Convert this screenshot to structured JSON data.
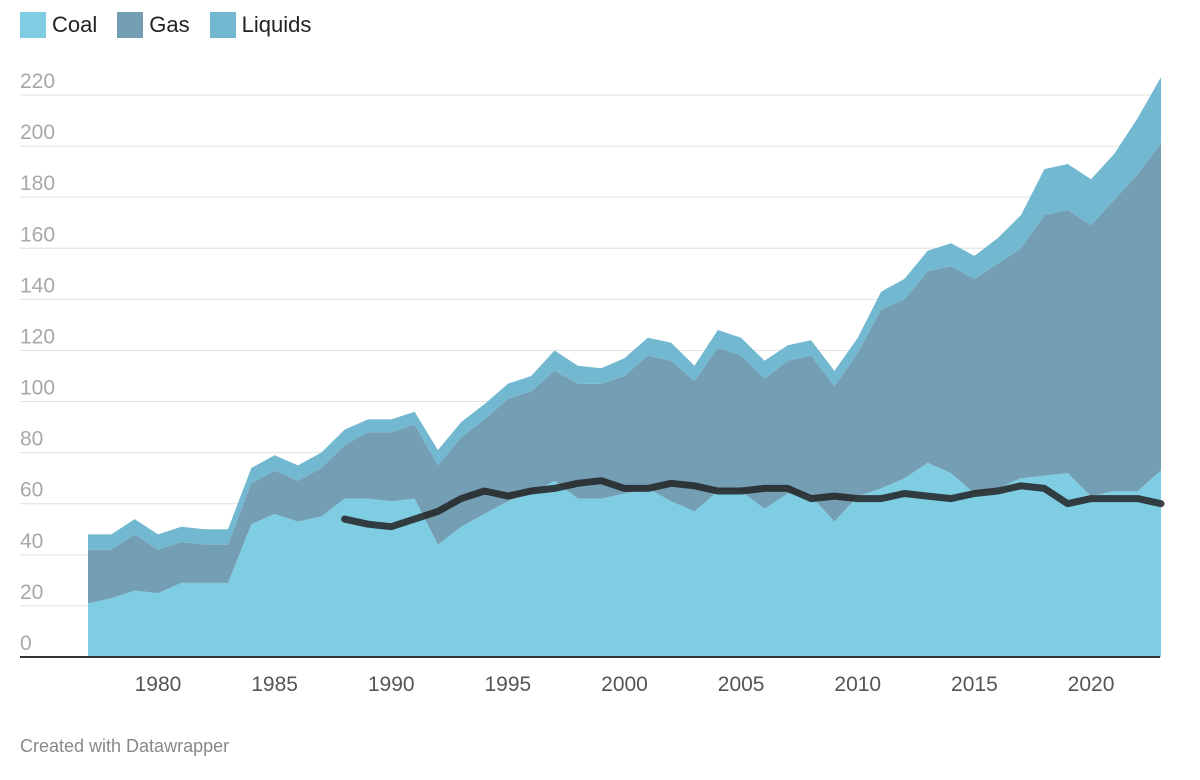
{
  "chart_data": {
    "type": "area",
    "stacked": true,
    "legend_position": "top-left",
    "grid": true,
    "ylim": [
      0,
      220
    ],
    "xlim": [
      1977,
      2023
    ],
    "yticks": [
      "0",
      "20",
      "40",
      "60",
      "80",
      "100",
      "120",
      "140",
      "160",
      "180",
      "200",
      "220"
    ],
    "xticks": [
      "1980",
      "1985",
      "1990",
      "1995",
      "2000",
      "2005",
      "2010",
      "2015",
      "2020"
    ],
    "x": [
      1977,
      1978,
      1979,
      1980,
      1981,
      1982,
      1983,
      1984,
      1985,
      1986,
      1987,
      1988,
      1989,
      1990,
      1991,
      1992,
      1993,
      1994,
      1995,
      1996,
      1997,
      1998,
      1999,
      2000,
      2001,
      2002,
      2003,
      2004,
      2005,
      2006,
      2007,
      2008,
      2009,
      2010,
      2011,
      2012,
      2013,
      2014,
      2015,
      2016,
      2017,
      2018,
      2019,
      2020,
      2021,
      2022,
      2023
    ],
    "series": [
      {
        "name": "Coal",
        "color": "#7fcde3",
        "values": [
          21,
          23,
          26,
          25,
          29,
          29,
          29,
          52,
          56,
          53,
          55,
          62,
          62,
          61,
          62,
          44,
          51,
          56,
          61,
          64,
          69,
          62,
          62,
          64,
          66,
          61,
          57,
          65,
          65,
          58,
          64,
          63,
          53,
          63,
          66,
          70,
          76,
          72,
          64,
          66,
          70,
          71,
          72,
          63,
          65,
          65,
          73
        ]
      },
      {
        "name": "Gas",
        "color": "#739eb4",
        "values": [
          21,
          19,
          22,
          17,
          16,
          15,
          15,
          16,
          17,
          16,
          19,
          21,
          26,
          27,
          29,
          31,
          35,
          37,
          40,
          40,
          43,
          45,
          45,
          46,
          52,
          55,
          51,
          56,
          53,
          51,
          52,
          55,
          53,
          56,
          70,
          70,
          75,
          81,
          84,
          88,
          90,
          102,
          103,
          106,
          114,
          124,
          128
        ]
      },
      {
        "name": "Liquids",
        "color": "#72b8d1",
        "values": [
          6,
          6,
          6,
          6,
          6,
          6,
          6,
          6,
          6,
          6,
          6,
          6,
          5,
          5,
          5,
          6,
          6,
          6,
          6,
          6,
          8,
          7,
          6,
          7,
          7,
          7,
          6,
          7,
          7,
          7,
          6,
          6,
          6,
          6,
          7,
          8,
          8,
          9,
          9,
          10,
          13,
          18,
          18,
          18,
          18,
          22,
          26
        ]
      },
      {
        "name": "",
        "color": "#222222",
        "line": true,
        "x": [
          1988,
          1989,
          1990,
          1991,
          1992,
          1993,
          1994,
          1995,
          1996,
          1997,
          1998,
          1999,
          2000,
          2001,
          2002,
          2003,
          2004,
          2005,
          2006,
          2007,
          2008,
          2009,
          2010,
          2011,
          2012,
          2013,
          2014,
          2015,
          2016,
          2017,
          2018,
          2019,
          2020,
          2021,
          2022,
          2023
        ],
        "values": [
          54,
          52,
          51,
          54,
          57,
          62,
          65,
          63,
          65,
          66,
          68,
          69,
          66,
          66,
          68,
          67,
          65,
          65,
          66,
          66,
          62,
          63,
          62,
          62,
          64,
          63,
          62,
          64,
          65,
          67,
          66,
          60,
          62,
          62,
          62,
          60
        ]
      }
    ]
  },
  "footer": "Created with Datawrapper"
}
